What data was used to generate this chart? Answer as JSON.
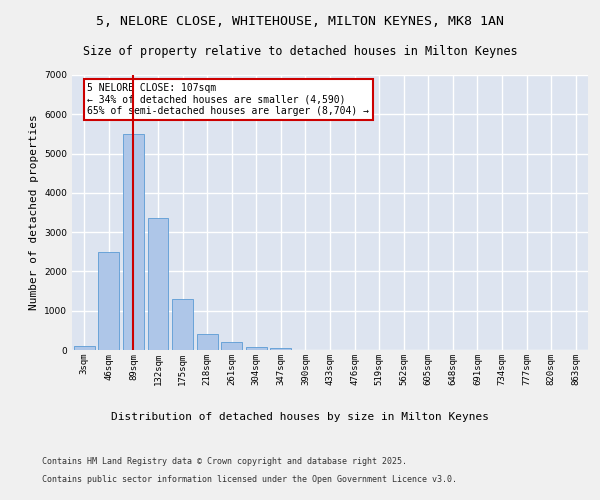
{
  "title_line1": "5, NELORE CLOSE, WHITEHOUSE, MILTON KEYNES, MK8 1AN",
  "title_line2": "Size of property relative to detached houses in Milton Keynes",
  "xlabel": "Distribution of detached houses by size in Milton Keynes",
  "ylabel": "Number of detached properties",
  "categories": [
    "3sqm",
    "46sqm",
    "89sqm",
    "132sqm",
    "175sqm",
    "218sqm",
    "261sqm",
    "304sqm",
    "347sqm",
    "390sqm",
    "433sqm",
    "476sqm",
    "519sqm",
    "562sqm",
    "605sqm",
    "648sqm",
    "691sqm",
    "734sqm",
    "777sqm",
    "820sqm",
    "863sqm"
  ],
  "values": [
    100,
    2500,
    5500,
    3350,
    1300,
    420,
    200,
    80,
    40,
    0,
    0,
    0,
    0,
    0,
    0,
    0,
    0,
    0,
    0,
    0,
    0
  ],
  "bar_color": "#aec6e8",
  "bar_edge_color": "#5b9bd5",
  "vline_color": "#cc0000",
  "vline_position": 2.0,
  "annotation_text": "5 NELORE CLOSE: 107sqm\n← 34% of detached houses are smaller (4,590)\n65% of semi-detached houses are larger (8,704) →",
  "annotation_box_facecolor": "#ffffff",
  "annotation_box_edgecolor": "#cc0000",
  "ylim": [
    0,
    7000
  ],
  "yticks": [
    0,
    1000,
    2000,
    3000,
    4000,
    5000,
    6000,
    7000
  ],
  "ax_facecolor": "#dde4f0",
  "grid_color": "#ffffff",
  "fig_facecolor": "#f0f0f0",
  "footer_line1": "Contains HM Land Registry data © Crown copyright and database right 2025.",
  "footer_line2": "Contains public sector information licensed under the Open Government Licence v3.0.",
  "title_fontsize": 9.5,
  "subtitle_fontsize": 8.5,
  "axis_label_fontsize": 8,
  "ylabel_fontsize": 8,
  "tick_fontsize": 6.5,
  "annotation_fontsize": 7,
  "footer_fontsize": 6
}
